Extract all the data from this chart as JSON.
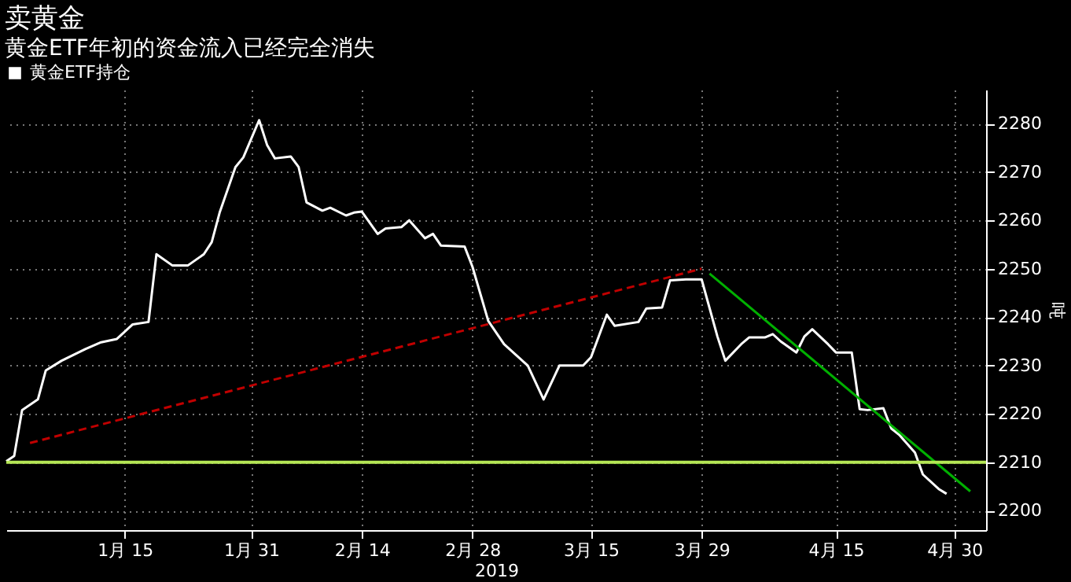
{
  "chart_data": {
    "type": "line",
    "title": "卖黄金",
    "subtitle": "黄金ETF年初的资金流入已经完全消失",
    "xlabel": "2019",
    "ylabel": "吨",
    "x": [
      "2018-12-31",
      "2019-01-01",
      "2019-01-02",
      "2019-01-04",
      "2019-01-05",
      "2019-01-07",
      "2019-01-10",
      "2019-01-12",
      "2019-01-14",
      "2019-01-16",
      "2019-01-18",
      "2019-01-19",
      "2019-01-21",
      "2019-01-23",
      "2019-01-25",
      "2019-01-26",
      "2019-01-27",
      "2019-01-29",
      "2019-01-30",
      "2019-02-01",
      "2019-02-02",
      "2019-02-03",
      "2019-02-05",
      "2019-02-06",
      "2019-02-07",
      "2019-02-09",
      "2019-02-10",
      "2019-02-12",
      "2019-02-13",
      "2019-02-14",
      "2019-02-16",
      "2019-02-17",
      "2019-02-19",
      "2019-02-20",
      "2019-02-22",
      "2019-02-23",
      "2019-02-24",
      "2019-02-27",
      "2019-02-28",
      "2019-03-02",
      "2019-03-04",
      "2019-03-07",
      "2019-03-09",
      "2019-03-11",
      "2019-03-14",
      "2019-03-15",
      "2019-03-17",
      "2019-03-18",
      "2019-03-21",
      "2019-03-22",
      "2019-03-24",
      "2019-03-25",
      "2019-03-27",
      "2019-03-29",
      "2019-03-31",
      "2019-04-01",
      "2019-04-03",
      "2019-04-04",
      "2019-04-06",
      "2019-04-07",
      "2019-04-08",
      "2019-04-10",
      "2019-04-11",
      "2019-04-12",
      "2019-04-14",
      "2019-04-15",
      "2019-04-17",
      "2019-04-18",
      "2019-04-19",
      "2019-04-21",
      "2019-04-22",
      "2019-04-23",
      "2019-04-25",
      "2019-04-26",
      "2019-04-28",
      "2019-04-29"
    ],
    "series": [
      {
        "name": "黄金ETF持仓",
        "color": "#ffffff",
        "values": [
          2210.2,
          2211.3,
          2220.8,
          2223,
          2229,
          2231,
          2233.4,
          2234.8,
          2235.5,
          2238.5,
          2239,
          2253,
          2250.7,
          2250.7,
          2253,
          2255.5,
          2261.6,
          2271,
          2273,
          2280.7,
          2275.6,
          2272.8,
          2273.2,
          2271,
          2263.7,
          2262,
          2262.6,
          2261,
          2261.6,
          2261.8,
          2257.2,
          2258.3,
          2258.6,
          2260,
          2256.3,
          2257.2,
          2254.8,
          2254.6,
          2250.4,
          2239.2,
          2234.4,
          2230,
          2223,
          2230,
          2230,
          2231.7,
          2240.5,
          2238.2,
          2239,
          2241.8,
          2242,
          2247.6,
          2247.8,
          2247.8,
          2236,
          2231,
          2234.4,
          2235.8,
          2235.8,
          2236.5,
          2235,
          2232.7,
          2236,
          2237.5,
          2234.4,
          2232.7,
          2232.7,
          2221,
          2220.8,
          2221.2,
          2217,
          2215.7,
          2212,
          2207.5,
          2204.5,
          2203.5
        ]
      },
      {
        "type": "line",
        "color": "#c00000",
        "line_style": "dashed",
        "x": [
          "2019-01-03",
          "2019-03-29"
        ],
        "values": [
          2214,
          2250
        ]
      },
      {
        "type": "line",
        "color": "#00b000",
        "line_style": "solid",
        "x": [
          "2019-03-30",
          "2019-05-02"
        ],
        "values": [
          2249,
          2204
        ]
      }
    ],
    "xlim": [
      "2018-12-31",
      "2019-05-04"
    ],
    "xticks": [
      {
        "value": "2019-01-15",
        "label": "1月 15"
      },
      {
        "value": "2019-01-31",
        "label": "1月 31"
      },
      {
        "value": "2019-02-14",
        "label": "2月 14"
      },
      {
        "value": "2019-02-28",
        "label": "2月 28"
      },
      {
        "value": "2019-03-15",
        "label": "3月 15"
      },
      {
        "value": "2019-03-29",
        "label": "3月 29"
      },
      {
        "value": "2019-04-15",
        "label": "4月 15"
      },
      {
        "value": "2019-04-30",
        "label": "4月 30"
      }
    ],
    "ylim": [
      2196,
      2287
    ],
    "yticks": [
      2200,
      2210,
      2220,
      2230,
      2240,
      2250,
      2260,
      2270,
      2280
    ],
    "ref_lines": [
      {
        "axis": "y",
        "value": 2210,
        "color": "#b5e655",
        "line_style": "solid"
      }
    ],
    "grid": true,
    "legend": "top left",
    "marker": "none",
    "line_style": "solid"
  }
}
